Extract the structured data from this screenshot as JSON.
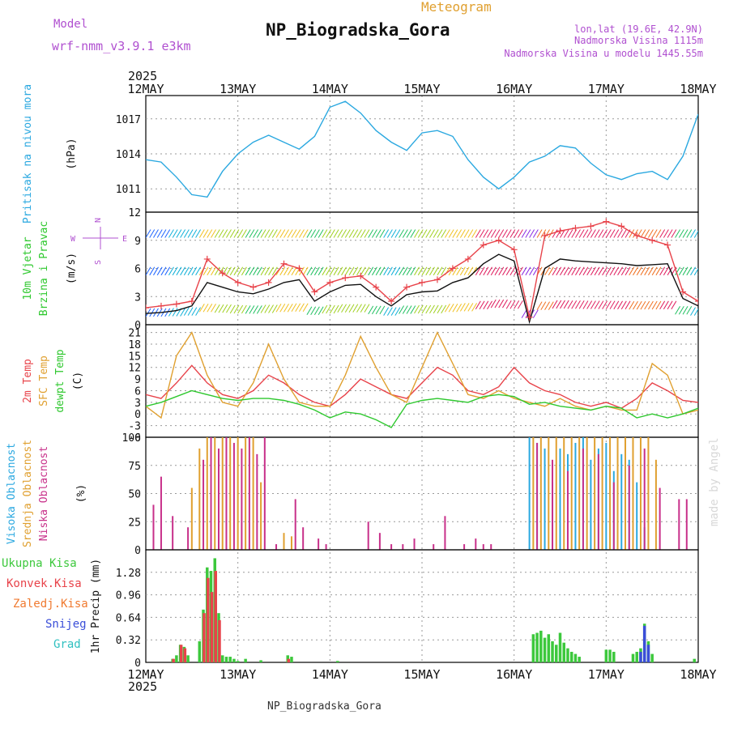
{
  "header": {
    "model_label": "Model",
    "model_name": "wrf-nmm_v3.9.1 e3km",
    "title": "NP_Biogradska_Gora",
    "subtitle": "Meteogram",
    "lonlat": "lon,lat (19.6E, 42.9N)",
    "elevation": "Nadmorska Visina 1115m",
    "model_elevation": "Nadmorska Visina u modelu 1445.55m",
    "footer_station": "NP_Biogradska_Gora",
    "watermark": "made by Angel",
    "year_label": "2025"
  },
  "colors": {
    "pressure": "#2aa8e0",
    "temp2m": "#e8434a",
    "sfc_temp": "#e0a030",
    "dewpoint": "#2ec82e",
    "purple_text": "#b050d0",
    "high_cloud": "#2aa8e0",
    "mid_cloud": "#e0a030",
    "low_cloud": "#c8308a",
    "precip_total": "#3cc83c",
    "precip_conv": "#e8434a",
    "precip_frozen": "#f07a30",
    "snow": "#3a4ed8",
    "hail": "#30c0c0"
  },
  "chart_data": {
    "type": "line",
    "x_axis": {
      "categories": [
        "12MAY",
        "13MAY",
        "14MAY",
        "15MAY",
        "16MAY",
        "17MAY",
        "18MAY"
      ],
      "year": "2025"
    },
    "panels": [
      {
        "name": "pressure",
        "type": "line",
        "ylabel_lines": [
          "Pritisak na nivou mora"
        ],
        "unit": "(hPa)",
        "ylim": [
          1009,
          1019
        ],
        "yticks": [
          1011,
          1014,
          1017
        ],
        "series": [
          {
            "name": "Sea level pressure",
            "x": [
              0,
              4,
              8,
              12,
              16,
              20,
              24,
              28,
              32,
              36,
              40,
              44,
              48,
              52,
              56,
              60,
              64,
              68,
              72,
              76,
              80,
              84,
              88,
              92,
              96,
              100,
              104,
              108,
              112,
              116,
              120,
              124,
              128,
              132,
              136,
              140,
              144
            ],
            "values": [
              1013.5,
              1013.3,
              1012.0,
              1010.5,
              1010.3,
              1012.5,
              1014.0,
              1015.0,
              1015.6,
              1015.0,
              1014.4,
              1015.5,
              1018.0,
              1018.5,
              1017.5,
              1016.0,
              1015.0,
              1014.3,
              1015.8,
              1016.0,
              1015.5,
              1013.5,
              1012.0,
              1011.0,
              1012.0,
              1013.3,
              1013.8,
              1014.7,
              1014.5,
              1013.2,
              1012.2,
              1011.8,
              1012.3,
              1012.5,
              1011.8,
              1013.8,
              1017.4
            ]
          }
        ]
      },
      {
        "name": "wind",
        "type": "line",
        "ylabel_lines": [
          "10m Vjetar",
          "Brzina i Pravac"
        ],
        "unit": "(m/s)",
        "compass": [
          "N",
          "W",
          "E",
          "S"
        ],
        "ylim": [
          0,
          12
        ],
        "yticks": [
          0,
          3,
          6,
          9,
          12
        ],
        "series": [
          {
            "name": "Wind speed",
            "x": [
              0,
              4,
              8,
              12,
              16,
              20,
              24,
              28,
              32,
              36,
              40,
              44,
              48,
              52,
              56,
              60,
              64,
              68,
              72,
              76,
              80,
              84,
              88,
              92,
              96,
              100,
              104,
              108,
              112,
              116,
              120,
              124,
              128,
              132,
              136,
              140,
              144
            ],
            "values": [
              1.2,
              1.3,
              1.5,
              2.0,
              4.5,
              4.0,
              3.5,
              3.3,
              3.8,
              4.5,
              4.8,
              2.5,
              3.5,
              4.2,
              4.3,
              3.0,
              2.0,
              3.2,
              3.5,
              3.6,
              4.5,
              5.0,
              6.5,
              7.5,
              6.8,
              0.3,
              6.0,
              7.0,
              6.8,
              6.7,
              6.6,
              6.5,
              6.3,
              6.4,
              6.5,
              2.8,
              2.0
            ]
          },
          {
            "name": "Wind gust",
            "x": [
              0,
              4,
              8,
              12,
              16,
              20,
              24,
              28,
              32,
              36,
              40,
              44,
              48,
              52,
              56,
              60,
              64,
              68,
              72,
              76,
              80,
              84,
              88,
              92,
              96,
              100,
              104,
              108,
              112,
              116,
              120,
              124,
              128,
              132,
              136,
              140,
              144
            ],
            "values": [
              1.8,
              2.0,
              2.2,
              2.5,
              7.0,
              5.5,
              4.5,
              4.0,
              4.5,
              6.5,
              6.0,
              3.5,
              4.5,
              5.0,
              5.2,
              4.0,
              2.5,
              4.0,
              4.5,
              4.8,
              6.0,
              7.0,
              8.5,
              9.0,
              8.0,
              0.8,
              9.5,
              10.0,
              10.3,
              10.5,
              11.0,
              10.5,
              9.5,
              9.0,
              8.5,
              3.5,
              2.5
            ]
          }
        ]
      },
      {
        "name": "temperature",
        "type": "line",
        "ylabel_lines": [
          "2m Temp",
          "SFC Temp",
          "dewpt Temp"
        ],
        "unit": "(C)",
        "ylim": [
          -6,
          23
        ],
        "yticks": [
          -6,
          -3,
          0,
          3,
          6,
          9,
          12,
          15,
          18,
          21
        ],
        "series": [
          {
            "name": "2m Temp",
            "x": [
              0,
              4,
              8,
              12,
              16,
              20,
              24,
              28,
              32,
              36,
              40,
              44,
              48,
              52,
              56,
              60,
              64,
              68,
              72,
              76,
              80,
              84,
              88,
              92,
              96,
              100,
              104,
              108,
              112,
              116,
              120,
              124,
              128,
              132,
              136,
              140,
              144
            ],
            "values": [
              5.0,
              4.0,
              8.0,
              12.5,
              8.0,
              5.0,
              4.0,
              6.0,
              10.0,
              8.0,
              5.0,
              3.0,
              2.0,
              5.0,
              9.0,
              7.0,
              5.0,
              4.0,
              8.0,
              12.0,
              10.0,
              6.0,
              5.0,
              7.0,
              12.0,
              8.0,
              6.0,
              5.0,
              3.0,
              2.0,
              3.0,
              1.5,
              4.0,
              8.0,
              6.0,
              3.5,
              3.0
            ]
          },
          {
            "name": "SFC Temp",
            "x": [
              0,
              4,
              8,
              12,
              16,
              20,
              24,
              28,
              32,
              36,
              40,
              44,
              48,
              52,
              56,
              60,
              64,
              68,
              72,
              76,
              80,
              84,
              88,
              92,
              96,
              100,
              104,
              108,
              112,
              116,
              120,
              124,
              128,
              132,
              136,
              140,
              144
            ],
            "values": [
              2.0,
              -1.0,
              15.0,
              21.0,
              10.0,
              3.0,
              2.0,
              8.0,
              18.0,
              9.0,
              3.0,
              2.0,
              2.0,
              10.0,
              20.0,
              12.0,
              5.0,
              3.0,
              12.0,
              21.0,
              13.0,
              5.0,
              4.0,
              6.0,
              4.0,
              3.0,
              2.0,
              4.0,
              2.0,
              1.0,
              2.0,
              1.0,
              1.0,
              13.0,
              10.0,
              0.0,
              1.0
            ]
          },
          {
            "name": "dewpt Temp",
            "x": [
              0,
              4,
              8,
              12,
              16,
              20,
              24,
              28,
              32,
              36,
              40,
              44,
              48,
              52,
              56,
              60,
              64,
              68,
              72,
              76,
              80,
              84,
              88,
              92,
              96,
              100,
              104,
              108,
              112,
              116,
              120,
              124,
              128,
              132,
              136,
              140,
              144
            ],
            "values": [
              2.0,
              3.0,
              4.5,
              6.0,
              5.0,
              4.0,
              3.5,
              4.0,
              4.0,
              3.5,
              2.5,
              1.0,
              -1.0,
              0.5,
              0.0,
              -1.5,
              -3.5,
              2.5,
              3.5,
              4.0,
              3.5,
              3.0,
              4.5,
              5.0,
              4.5,
              2.5,
              3.0,
              2.0,
              1.5,
              1.0,
              2.0,
              1.5,
              -1.0,
              0.0,
              -1.0,
              0.0,
              1.5
            ]
          }
        ]
      },
      {
        "name": "cloud",
        "type": "bar",
        "ylabel_lines": [
          "Visoka Oblacnost",
          "Srednja Oblacnost",
          "Niska Oblacnost"
        ],
        "unit": "(%)",
        "ylim": [
          0,
          100
        ],
        "yticks": [
          0,
          25,
          50,
          75,
          100
        ],
        "series": [
          {
            "name": "Visoka Oblacnost",
            "x": [
              100,
              102,
              104,
              106,
              108,
              110,
              112,
              114,
              116,
              118,
              120,
              122,
              124,
              126,
              128,
              130
            ],
            "values": [
              100,
              95,
              90,
              60,
              90,
              85,
              95,
              100,
              80,
              90,
              95,
              70,
              85,
              80,
              60,
              20
            ]
          },
          {
            "name": "Srednja Oblacnost",
            "x": [
              12,
              14,
              16,
              18,
              20,
              22,
              24,
              26,
              28,
              30,
              36,
              38,
              101,
              103,
              105,
              107,
              109,
              111,
              113,
              115,
              117,
              119,
              121,
              123,
              125,
              127,
              129,
              131,
              133
            ],
            "values": [
              55,
              90,
              100,
              100,
              100,
              100,
              100,
              100,
              100,
              60,
              15,
              12,
              100,
              100,
              100,
              100,
              100,
              100,
              100,
              100,
              100,
              100,
              100,
              100,
              100,
              100,
              100,
              100,
              80
            ]
          },
          {
            "name": "Niska Oblacnost",
            "x": [
              2,
              4,
              7,
              11,
              15,
              17,
              19,
              21,
              23,
              25,
              27,
              29,
              31,
              34,
              39,
              41,
              45,
              47,
              58,
              61,
              64,
              67,
              70,
              75,
              78,
              83,
              86,
              88,
              90,
              102,
              106,
              110,
              114,
              118,
              122,
              126,
              130,
              134,
              139,
              141
            ],
            "values": [
              40,
              65,
              30,
              20,
              80,
              100,
              90,
              100,
              95,
              90,
              100,
              85,
              100,
              5,
              45,
              20,
              10,
              5,
              25,
              15,
              5,
              5,
              10,
              5,
              30,
              5,
              10,
              5,
              5,
              95,
              80,
              70,
              90,
              85,
              60,
              75,
              90,
              55,
              45,
              45
            ]
          }
        ]
      },
      {
        "name": "precip",
        "type": "bar",
        "ylabel_lines": [
          "1hr Precip (mm)"
        ],
        "legend": [
          "Ukupna Kisa",
          "Konvek.Kisa",
          "Zaledj.Kisa",
          "Snijeg",
          "Grad"
        ],
        "ylim": [
          0,
          1.6
        ],
        "yticks": [
          0,
          0.32,
          0.64,
          0.96,
          1.28
        ],
        "series": [
          {
            "name": "Ukupna Kisa",
            "x": [
              7,
              8,
              9,
              10,
              11,
              14,
              15,
              16,
              17,
              18,
              19,
              20,
              21,
              22,
              23,
              24,
              26,
              30,
              37,
              38,
              50,
              101,
              102,
              103,
              104,
              105,
              106,
              107,
              108,
              109,
              110,
              111,
              112,
              113,
              120,
              121,
              122,
              127,
              128,
              129,
              130,
              131,
              132,
              143
            ],
            "values": [
              0.05,
              0.1,
              0.25,
              0.22,
              0.1,
              0.3,
              0.75,
              1.35,
              1.3,
              1.48,
              0.7,
              0.1,
              0.08,
              0.08,
              0.05,
              0.02,
              0.05,
              0.03,
              0.1,
              0.08,
              0.02,
              0.4,
              0.42,
              0.45,
              0.35,
              0.4,
              0.3,
              0.25,
              0.42,
              0.28,
              0.2,
              0.15,
              0.12,
              0.08,
              0.18,
              0.18,
              0.15,
              0.12,
              0.15,
              0.2,
              0.55,
              0.3,
              0.12,
              0.05
            ]
          },
          {
            "name": "Konvek.Kisa",
            "x": [
              7,
              9,
              10,
              15,
              16,
              17,
              18,
              19,
              37
            ],
            "values": [
              0.05,
              0.25,
              0.2,
              0.7,
              1.2,
              1.0,
              1.3,
              0.6,
              0.05
            ]
          },
          {
            "name": "Snijeg",
            "x": [
              129,
              130,
              131
            ],
            "values": [
              0.15,
              0.52,
              0.25
            ]
          }
        ]
      }
    ]
  }
}
